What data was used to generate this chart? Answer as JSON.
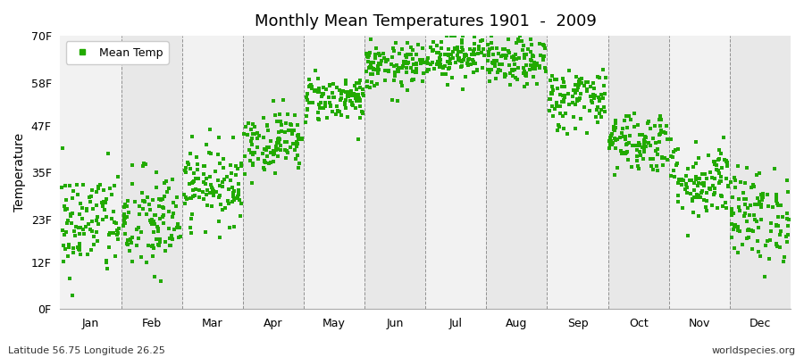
{
  "title": "Monthly Mean Temperatures 1901  -  2009",
  "ylabel": "Temperature",
  "ytick_labels": [
    "0F",
    "12F",
    "23F",
    "35F",
    "47F",
    "58F",
    "70F"
  ],
  "ytick_values": [
    0,
    12,
    23,
    35,
    47,
    58,
    70
  ],
  "ylim": [
    0,
    70
  ],
  "months": [
    "Jan",
    "Feb",
    "Mar",
    "Apr",
    "May",
    "Jun",
    "Jul",
    "Aug",
    "Sep",
    "Oct",
    "Nov",
    "Dec"
  ],
  "footer_left": "Latitude 56.75 Longitude 26.25",
  "footer_right": "worldspecies.org",
  "legend_label": "Mean Temp",
  "dot_color": "#22aa00",
  "bg_color": "#f2f2f2",
  "alt_bg_color": "#e8e8e8",
  "n_years": 109,
  "mean_temps_f": [
    22,
    22,
    32,
    43,
    54,
    62,
    65,
    63,
    54,
    43,
    33,
    24
  ],
  "std_temps_f": [
    7,
    7,
    5,
    4,
    3,
    3,
    3,
    3,
    4,
    4,
    5,
    6
  ],
  "seed": 42
}
